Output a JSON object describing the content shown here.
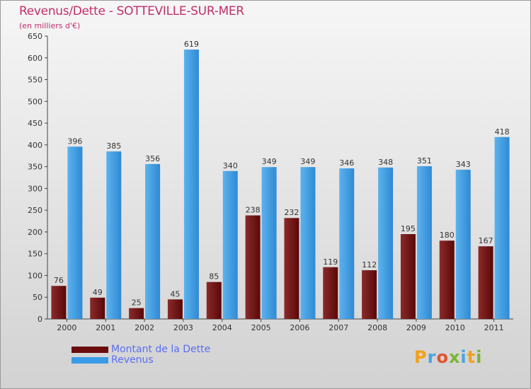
{
  "header": {
    "title": "Revenus/Dette - SOTTEVILLE-SUR-MER",
    "subtitle": "(en milliers d'€)"
  },
  "legend": {
    "items": [
      {
        "label": "Montant de la Dette",
        "color": "#6b0c0c"
      },
      {
        "label": "Revenus",
        "color": "#3a9be6"
      }
    ]
  },
  "brand": {
    "letters": [
      "P",
      "r",
      "o",
      "x",
      "i",
      "t",
      "i"
    ],
    "colors": [
      "#f3a01c",
      "#4aa3e0",
      "#e0542e",
      "#7ab534",
      "#4aa3e0",
      "#f3a01c",
      "#7ab534"
    ]
  },
  "chart_data": {
    "type": "bar",
    "categories": [
      "2000",
      "2001",
      "2002",
      "2003",
      "2004",
      "2005",
      "2006",
      "2007",
      "2008",
      "2009",
      "2010",
      "2011"
    ],
    "series": [
      {
        "name": "Montant de la Dette",
        "values": [
          76,
          49,
          25,
          45,
          85,
          238,
          232,
          119,
          112,
          195,
          180,
          167
        ],
        "color": "#6b0c0c"
      },
      {
        "name": "Revenus",
        "values": [
          396,
          385,
          356,
          619,
          340,
          349,
          349,
          346,
          348,
          351,
          343,
          418
        ],
        "color": "#3a9be6"
      }
    ],
    "ylim": [
      0,
      650
    ],
    "yticks": [
      0,
      50,
      100,
      150,
      200,
      250,
      300,
      350,
      400,
      450,
      500,
      550,
      600,
      650
    ],
    "grid": false,
    "legend_position": "bottom-left"
  }
}
